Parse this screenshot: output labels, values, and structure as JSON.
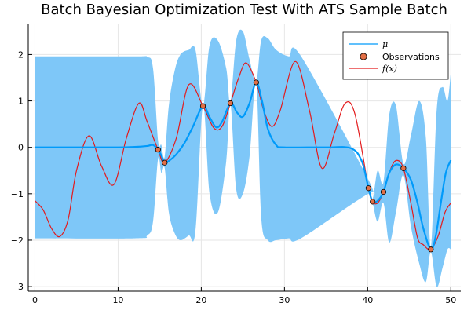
{
  "chart_data": {
    "type": "line",
    "title": "Batch Bayesian Optimization Test With ATS Sample Batch",
    "xlabel": "",
    "ylabel": "",
    "xlim": [
      -0.8,
      51.2
    ],
    "ylim": [
      -3.1,
      2.65
    ],
    "xticks": [
      0,
      10,
      20,
      30,
      40,
      50
    ],
    "yticks": [
      -3,
      -2,
      -1,
      0,
      1,
      2
    ],
    "grid": true,
    "legend_position": "top-right",
    "colors": {
      "mu": "#009AFA",
      "band": "#7EC7F8",
      "f": "#E31A1C",
      "obs_fill": "#E26F46",
      "obs_edge": "#000000"
    },
    "legend": [
      {
        "key": "mu",
        "label": "μ",
        "math": true
      },
      {
        "key": "obs",
        "label": "Observations",
        "math": false
      },
      {
        "key": "f",
        "label": "f(x)",
        "math": true
      }
    ],
    "observations": {
      "name": "Observations",
      "x": [
        14.8,
        15.6,
        20.2,
        23.5,
        26.6,
        40.1,
        40.6,
        41.9,
        44.3,
        47.6
      ],
      "y": [
        -0.05,
        -0.33,
        0.89,
        0.95,
        1.4,
        -0.88,
        -1.17,
        -0.96,
        -0.45,
        -2.2
      ]
    },
    "series": [
      {
        "name": "f(x)",
        "key": "f",
        "x": [
          0,
          1,
          2,
          3,
          4,
          5,
          6.5,
          8,
          9.5,
          11,
          12.5,
          13.5,
          14.8,
          15.6,
          17,
          18.5,
          20.2,
          21.5,
          22.5,
          23.5,
          24.5,
          25.4,
          26.6,
          27.5,
          28.5,
          29.5,
          31.3,
          33,
          34.5,
          36,
          37.3,
          38.5,
          40.1,
          40.6,
          41.2,
          41.9,
          42.8,
          43.5,
          44.3,
          45.2,
          46,
          46.7,
          47.6,
          48.5,
          49.3,
          50
        ],
        "y": [
          -1.15,
          -1.35,
          -1.75,
          -1.92,
          -1.55,
          -0.5,
          0.25,
          -0.4,
          -0.8,
          0.2,
          0.95,
          0.55,
          -0.05,
          -0.33,
          0.2,
          1.35,
          0.89,
          0.42,
          0.45,
          0.95,
          1.5,
          1.82,
          1.4,
          0.8,
          0.45,
          0.8,
          1.85,
          0.8,
          -0.45,
          0.3,
          0.95,
          0.7,
          -0.88,
          -1.17,
          -1.2,
          -0.96,
          -0.45,
          -0.28,
          -0.45,
          -1.2,
          -1.95,
          -2.1,
          -2.2,
          -1.9,
          -1.4,
          -1.2
        ]
      },
      {
        "name": "μ",
        "key": "mu",
        "x": [
          0,
          5,
          10,
          12,
          13.5,
          14.2,
          14.8,
          15.2,
          15.6,
          16.2,
          17,
          18,
          19,
          20.2,
          21,
          21.8,
          22.5,
          23.5,
          24.3,
          25,
          25.8,
          26.6,
          27.3,
          28,
          29,
          30,
          35,
          38,
          39.3,
          40.1,
          40.6,
          41.2,
          41.9,
          42.6,
          43.4,
          44.3,
          45.2,
          46,
          46.7,
          47.6,
          48.2,
          48.8,
          49.4,
          50
        ],
        "y": [
          0,
          0,
          0,
          0.01,
          0.03,
          0.05,
          -0.05,
          -0.18,
          -0.33,
          -0.28,
          -0.15,
          0.1,
          0.45,
          0.89,
          0.65,
          0.43,
          0.55,
          0.95,
          0.75,
          0.66,
          0.95,
          1.4,
          1.0,
          0.4,
          0.05,
          0.0,
          0.0,
          -0.02,
          -0.3,
          -0.88,
          -1.17,
          -1.15,
          -0.96,
          -0.55,
          -0.37,
          -0.45,
          -0.7,
          -1.2,
          -1.75,
          -2.2,
          -1.9,
          -1.2,
          -0.55,
          -0.28
        ]
      }
    ],
    "confidence_band": {
      "name": "band",
      "x": [
        0,
        12,
        13.5,
        14.2,
        14.8,
        15.2,
        15.6,
        16.1,
        16.8,
        17.5,
        18.5,
        19.3,
        20.2,
        21,
        22,
        23,
        23.5,
        24.2,
        25,
        25.8,
        26.6,
        27.2,
        28,
        29,
        30.5,
        32,
        40.1,
        40.6,
        41.2,
        41.9,
        42.6,
        43.4,
        44.3,
        45.2,
        46.2,
        47,
        47.6,
        48.3,
        49,
        49.6,
        50
      ],
      "upper": [
        1.96,
        1.96,
        1.95,
        1.7,
        0.15,
        0.05,
        -0.2,
        0.9,
        1.65,
        2.0,
        2.1,
        2.1,
        0.89,
        2.2,
        2.3,
        1.7,
        0.95,
        2.3,
        2.5,
        1.9,
        1.4,
        2.3,
        2.35,
        2.1,
        1.96,
        1.96,
        -0.7,
        -1.1,
        -0.5,
        -0.75,
        0.7,
        0.9,
        -0.35,
        0.25,
        1.0,
        0.2,
        -2.15,
        0.8,
        1.3,
        1.0,
        1.62
      ],
      "lower": [
        -1.96,
        -1.96,
        -1.9,
        -1.6,
        -0.25,
        -0.55,
        -0.45,
        -1.4,
        -1.85,
        -2.0,
        -1.9,
        -1.8,
        0.89,
        -1.0,
        -1.4,
        -0.3,
        0.95,
        -0.9,
        -1.0,
        -0.2,
        1.4,
        -1.5,
        -2.0,
        -2.0,
        -1.96,
        -1.96,
        -1.0,
        -1.2,
        -1.6,
        -1.2,
        -2.05,
        -1.4,
        -0.6,
        -1.7,
        -2.5,
        -2.9,
        -2.25,
        -3.0,
        -2.6,
        -2.2,
        -2.2
      ]
    }
  }
}
